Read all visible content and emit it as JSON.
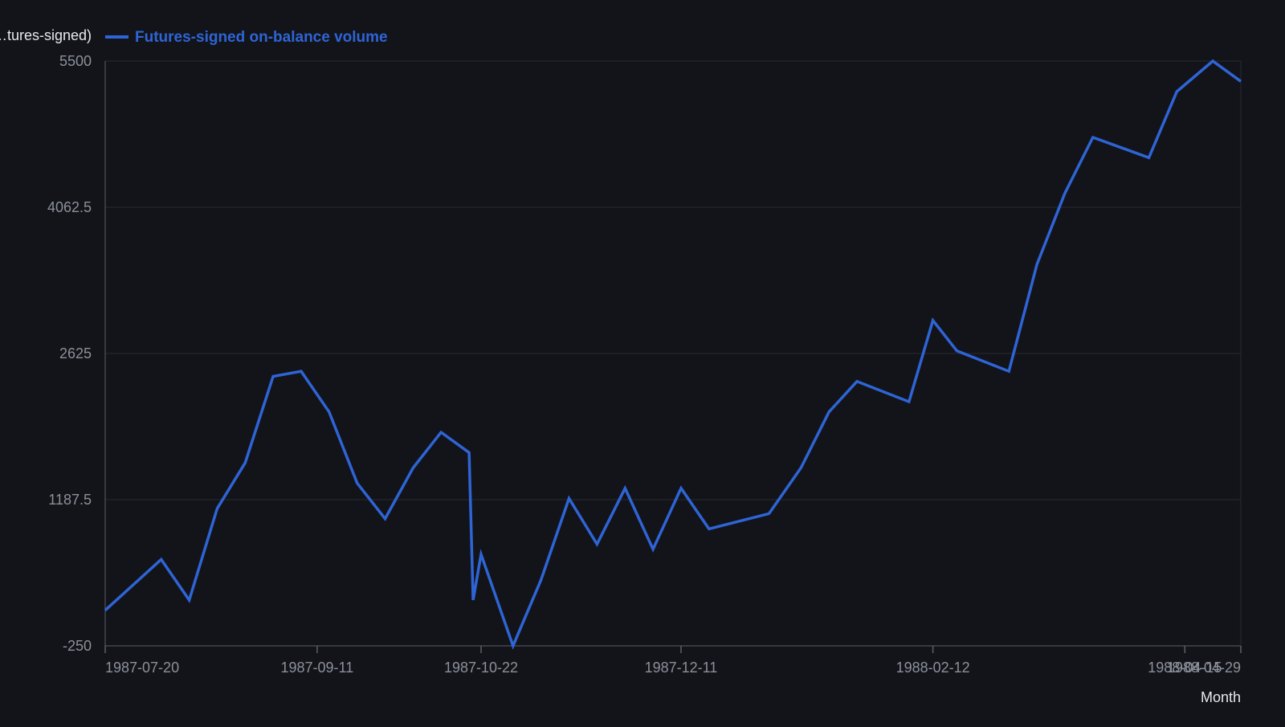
{
  "chart_data": {
    "type": "line",
    "title": "",
    "xlabel": "Month",
    "ylabel": "…tures-signed)",
    "legend": {
      "placement": "top-left",
      "entries": [
        "Futures-signed on-balance volume"
      ]
    },
    "grid": true,
    "ylim": [
      -250,
      5500
    ],
    "yticks": [
      "5500",
      "4062.5",
      "2625",
      "1187.5",
      "-250"
    ],
    "xlim": [
      "1987-07-20",
      "1988-04-29"
    ],
    "xticks": [
      "1987-07-20",
      "1987-09-11",
      "1987-10-22",
      "1987-12-11",
      "1988-02-12",
      "1988-04-15",
      "1988-04-29"
    ],
    "series": [
      {
        "name": "Futures-signed on-balance volume",
        "color": "#2f64d6",
        "points": [
          [
            "1987-07-20",
            100
          ],
          [
            "1987-07-27",
            350
          ],
          [
            "1987-08-03",
            600
          ],
          [
            "1987-08-10",
            200
          ],
          [
            "1987-08-17",
            1100
          ],
          [
            "1987-08-24",
            1550
          ],
          [
            "1987-08-31",
            2400
          ],
          [
            "1987-09-07",
            2450
          ],
          [
            "1987-09-14",
            2050
          ],
          [
            "1987-09-21",
            1350
          ],
          [
            "1987-09-28",
            1000
          ],
          [
            "1987-10-05",
            1500
          ],
          [
            "1987-10-12",
            1850
          ],
          [
            "1987-10-19",
            1650
          ],
          [
            "1987-10-20",
            200
          ],
          [
            "1987-10-22",
            650
          ],
          [
            "1987-10-30",
            -250
          ],
          [
            "1987-11-06",
            400
          ],
          [
            "1987-11-13",
            1200
          ],
          [
            "1987-11-20",
            750
          ],
          [
            "1987-11-27",
            1300
          ],
          [
            "1987-12-04",
            700
          ],
          [
            "1987-12-11",
            1300
          ],
          [
            "1987-12-18",
            900
          ],
          [
            "1988-01-02",
            1050
          ],
          [
            "1988-01-10",
            1500
          ],
          [
            "1988-01-17",
            2050
          ],
          [
            "1988-01-24",
            2350
          ],
          [
            "1988-02-06",
            2150
          ],
          [
            "1988-02-12",
            2950
          ],
          [
            "1988-02-18",
            2650
          ],
          [
            "1988-03-02",
            2450
          ],
          [
            "1988-03-09",
            3500
          ],
          [
            "1988-03-16",
            4200
          ],
          [
            "1988-03-23",
            4750
          ],
          [
            "1988-04-06",
            4550
          ],
          [
            "1988-04-13",
            5200
          ],
          [
            "1988-04-22",
            5500
          ],
          [
            "1988-04-29",
            5300
          ]
        ]
      }
    ]
  }
}
